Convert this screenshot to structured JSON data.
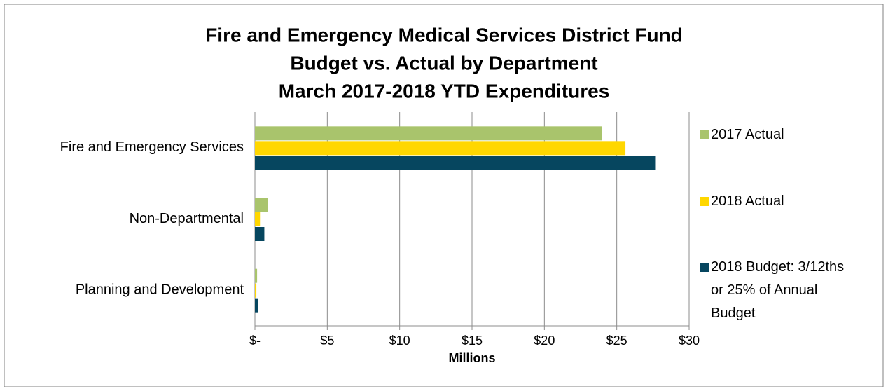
{
  "chart_data": {
    "type": "hbar",
    "title": [
      "Fire and Emergency Medical Services District Fund",
      "Budget vs. Actual by Department",
      "March 2017-2018 YTD Expenditures"
    ],
    "x_label": "Millions",
    "categories": [
      "Fire and Emergency Services",
      "Non-Departmental",
      "Planning and Development"
    ],
    "series": [
      {
        "name": "2017 Actual",
        "color": "#a9c46c",
        "values": [
          24.0,
          0.9,
          0.15
        ]
      },
      {
        "name": "2018 Actual",
        "color": "#ffd700",
        "values": [
          25.6,
          0.35,
          0.1
        ]
      },
      {
        "name": "2018 Budget: 3/12ths or 25% of Annual Budget",
        "color": "#06465f",
        "values": [
          27.7,
          0.65,
          0.2
        ]
      }
    ],
    "xlim": [
      0,
      30
    ],
    "xticks": [
      {
        "value": 0,
        "label": "$-"
      },
      {
        "value": 5,
        "label": "$5"
      },
      {
        "value": 10,
        "label": "$10"
      },
      {
        "value": 15,
        "label": "$15"
      },
      {
        "value": 20,
        "label": "$20"
      },
      {
        "value": 25,
        "label": "$25"
      },
      {
        "value": 30,
        "label": "$30"
      }
    ],
    "grid": true,
    "legend": "right"
  }
}
